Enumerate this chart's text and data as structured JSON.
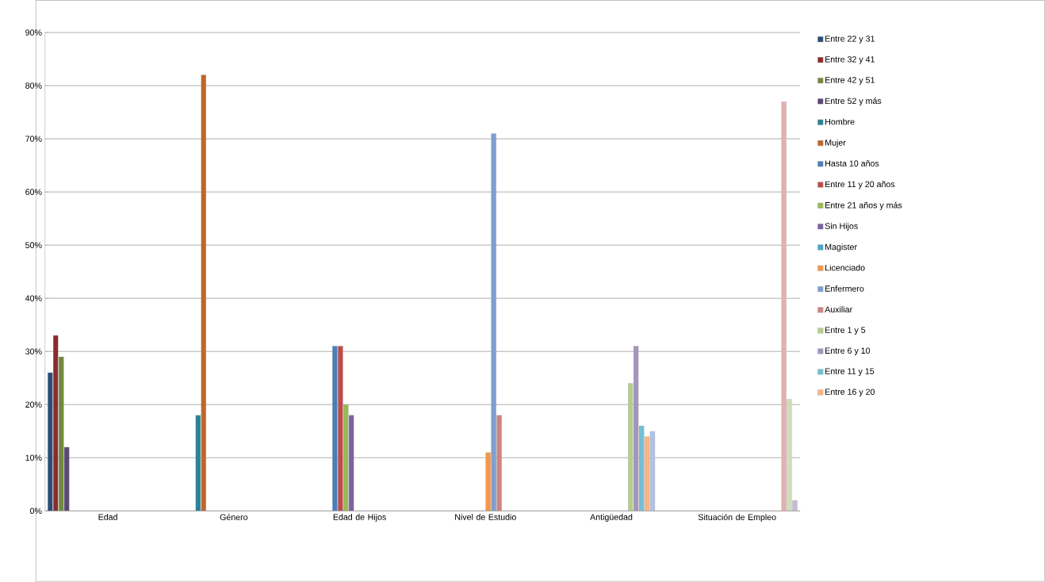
{
  "chart_data": {
    "type": "bar",
    "categories": [
      "Edad",
      "Género",
      "Edad de Hijos",
      "Nivel de Estudio",
      "Antigüedad",
      "Situación de Empleo"
    ],
    "series": [
      {
        "name": "Entre 22 y 31",
        "color": "#2c4d75",
        "values": [
          26,
          null,
          null,
          null,
          null,
          null
        ]
      },
      {
        "name": "Entre 32 y 41",
        "color": "#8b2c2a",
        "values": [
          33,
          null,
          null,
          null,
          null,
          null
        ]
      },
      {
        "name": "Entre 42 y 51",
        "color": "#71893f",
        "values": [
          29,
          null,
          null,
          null,
          null,
          null
        ]
      },
      {
        "name": "Entre 52 y más",
        "color": "#5c4776",
        "values": [
          12,
          null,
          null,
          null,
          null,
          null
        ]
      },
      {
        "name": "Hombre",
        "color": "#2c8198",
        "values": [
          null,
          18,
          null,
          null,
          null,
          null
        ]
      },
      {
        "name": "Mujer",
        "color": "#c0662a",
        "values": [
          null,
          82,
          null,
          null,
          null,
          null
        ]
      },
      {
        "name": "Hasta 10 años",
        "color": "#4a7ebb",
        "values": [
          null,
          null,
          31,
          null,
          null,
          null
        ]
      },
      {
        "name": "Entre 11 y 20 años",
        "color": "#be4b48",
        "values": [
          null,
          null,
          31,
          null,
          null,
          null
        ]
      },
      {
        "name": "Entre 21 años y más",
        "color": "#98b954",
        "values": [
          null,
          null,
          20,
          null,
          null,
          null
        ]
      },
      {
        "name": "Sin Hijos",
        "color": "#7d60a0",
        "values": [
          null,
          null,
          18,
          null,
          null,
          null
        ]
      },
      {
        "name": "Magister",
        "color": "#46aac5",
        "values": [
          null,
          null,
          null,
          0,
          null,
          null
        ]
      },
      {
        "name": "Licenciado",
        "color": "#f79646",
        "values": [
          null,
          null,
          null,
          11,
          null,
          null
        ]
      },
      {
        "name": "Enfermero",
        "color": "#7f9fcf",
        "values": [
          null,
          null,
          null,
          71,
          null,
          null
        ]
      },
      {
        "name": "Auxiliar",
        "color": "#d08382",
        "values": [
          null,
          null,
          null,
          18,
          null,
          null
        ]
      },
      {
        "name": "Entre 1 y 5",
        "color": "#b7cd8f",
        "values": [
          null,
          null,
          null,
          null,
          24,
          null
        ]
      },
      {
        "name": "Entre 6 y 10",
        "color": "#a495bd",
        "values": [
          null,
          null,
          null,
          null,
          31,
          null
        ]
      },
      {
        "name": "Entre 11 y 15",
        "color": "#74bfd5",
        "values": [
          null,
          null,
          null,
          null,
          16,
          null
        ]
      },
      {
        "name": "Entre 16 y 20",
        "color": "#f9b384",
        "values": [
          null,
          null,
          null,
          null,
          14,
          null
        ]
      },
      {
        "color": "#b2c2e0",
        "values": [
          null,
          null,
          null,
          null,
          15,
          null
        ]
      },
      {
        "color": "#dfb2b1",
        "values": [
          null,
          null,
          null,
          null,
          null,
          77
        ]
      },
      {
        "color": "#d0ddb9",
        "values": [
          null,
          null,
          null,
          null,
          null,
          21
        ]
      },
      {
        "color": "#c5bcd6",
        "values": [
          null,
          null,
          null,
          null,
          null,
          2
        ]
      }
    ],
    "ylim": [
      0,
      90
    ],
    "yticks": [
      {
        "value": 0,
        "label": "0%"
      },
      {
        "value": 10,
        "label": "10%"
      },
      {
        "value": 20,
        "label": "20%"
      },
      {
        "value": 30,
        "label": "30%"
      },
      {
        "value": 40,
        "label": "40%"
      },
      {
        "value": 50,
        "label": "50%"
      },
      {
        "value": 60,
        "label": "60%"
      },
      {
        "value": 70,
        "label": "70%"
      },
      {
        "value": 80,
        "label": "80%"
      },
      {
        "value": 90,
        "label": "90%"
      }
    ],
    "grid": "y",
    "legend": "right"
  }
}
